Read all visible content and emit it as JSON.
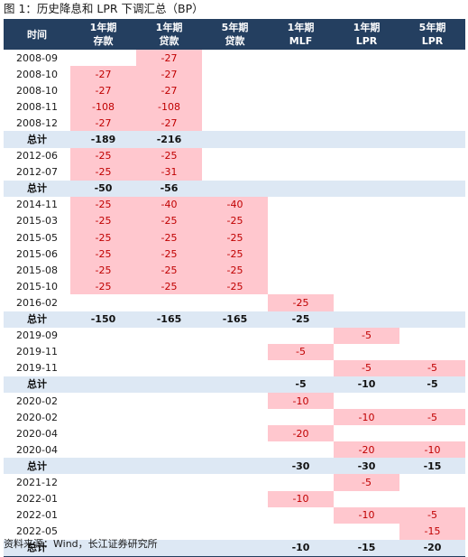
{
  "title": "图 1：历史降息和 LPR 下调汇总（BP）",
  "source": "资料来源：Wind，长江证券研究所",
  "colors": {
    "header_bg": "#243f60",
    "cut_bg": "#ffc7ce",
    "cut_text": "#c00000",
    "total_bg": "#dde8f4"
  },
  "columns": [
    {
      "line1": "时间",
      "line2": ""
    },
    {
      "line1": "1年期",
      "line2": "存款"
    },
    {
      "line1": "1年期",
      "line2": "贷款"
    },
    {
      "line1": "5年期",
      "line2": "贷款"
    },
    {
      "line1": "1年期",
      "line2": "MLF"
    },
    {
      "line1": "1年期",
      "line2": "LPR"
    },
    {
      "line1": "5年期",
      "line2": "LPR"
    }
  ],
  "rows": [
    {
      "type": "data",
      "cells": [
        "2008-09",
        "",
        "-27",
        "",
        "",
        "",
        ""
      ]
    },
    {
      "type": "data",
      "cells": [
        "2008-10",
        "-27",
        "-27",
        "",
        "",
        "",
        ""
      ]
    },
    {
      "type": "data",
      "cells": [
        "2008-10",
        "-27",
        "-27",
        "",
        "",
        "",
        ""
      ]
    },
    {
      "type": "data",
      "cells": [
        "2008-11",
        "-108",
        "-108",
        "",
        "",
        "",
        ""
      ]
    },
    {
      "type": "data",
      "cells": [
        "2008-12",
        "-27",
        "-27",
        "",
        "",
        "",
        ""
      ]
    },
    {
      "type": "total",
      "cells": [
        "总计",
        "-189",
        "-216",
        "",
        "",
        "",
        ""
      ]
    },
    {
      "type": "data",
      "cells": [
        "2012-06",
        "-25",
        "-25",
        "",
        "",
        "",
        ""
      ]
    },
    {
      "type": "data",
      "cells": [
        "2012-07",
        "-25",
        "-31",
        "",
        "",
        "",
        ""
      ]
    },
    {
      "type": "total",
      "cells": [
        "总计",
        "-50",
        "-56",
        "",
        "",
        "",
        ""
      ]
    },
    {
      "type": "data",
      "cells": [
        "2014-11",
        "-25",
        "-40",
        "-40",
        "",
        "",
        ""
      ]
    },
    {
      "type": "data",
      "cells": [
        "2015-03",
        "-25",
        "-25",
        "-25",
        "",
        "",
        ""
      ]
    },
    {
      "type": "data",
      "cells": [
        "2015-05",
        "-25",
        "-25",
        "-25",
        "",
        "",
        ""
      ]
    },
    {
      "type": "data",
      "cells": [
        "2015-06",
        "-25",
        "-25",
        "-25",
        "",
        "",
        ""
      ]
    },
    {
      "type": "data",
      "cells": [
        "2015-08",
        "-25",
        "-25",
        "-25",
        "",
        "",
        ""
      ]
    },
    {
      "type": "data",
      "cells": [
        "2015-10",
        "-25",
        "-25",
        "-25",
        "",
        "",
        ""
      ]
    },
    {
      "type": "data",
      "cells": [
        "2016-02",
        "",
        "",
        "",
        "-25",
        "",
        ""
      ]
    },
    {
      "type": "total",
      "cells": [
        "总计",
        "-150",
        "-165",
        "-165",
        "-25",
        "",
        ""
      ]
    },
    {
      "type": "data",
      "cells": [
        "2019-09",
        "",
        "",
        "",
        "",
        "-5",
        ""
      ]
    },
    {
      "type": "data",
      "cells": [
        "2019-11",
        "",
        "",
        "",
        "-5",
        "",
        ""
      ]
    },
    {
      "type": "data",
      "cells": [
        "2019-11",
        "",
        "",
        "",
        "",
        "-5",
        "-5"
      ]
    },
    {
      "type": "total",
      "cells": [
        "总计",
        "",
        "",
        "",
        "-5",
        "-10",
        "-5"
      ]
    },
    {
      "type": "data",
      "cells": [
        "2020-02",
        "",
        "",
        "",
        "-10",
        "",
        ""
      ]
    },
    {
      "type": "data",
      "cells": [
        "2020-02",
        "",
        "",
        "",
        "",
        "-10",
        "-5"
      ]
    },
    {
      "type": "data",
      "cells": [
        "2020-04",
        "",
        "",
        "",
        "-20",
        "",
        ""
      ]
    },
    {
      "type": "data",
      "cells": [
        "2020-04",
        "",
        "",
        "",
        "",
        "-20",
        "-10"
      ]
    },
    {
      "type": "total",
      "cells": [
        "总计",
        "",
        "",
        "",
        "-30",
        "-30",
        "-15"
      ]
    },
    {
      "type": "data",
      "cells": [
        "2021-12",
        "",
        "",
        "",
        "",
        "-5",
        ""
      ]
    },
    {
      "type": "data",
      "cells": [
        "2022-01",
        "",
        "",
        "",
        "-10",
        "",
        ""
      ]
    },
    {
      "type": "data",
      "cells": [
        "2022-01",
        "",
        "",
        "",
        "",
        "-10",
        "-5"
      ]
    },
    {
      "type": "data",
      "cells": [
        "2022-05",
        "",
        "",
        "",
        "",
        "",
        "-15"
      ]
    },
    {
      "type": "total",
      "cells": [
        "总计",
        "",
        "",
        "",
        "-10",
        "-15",
        "-20"
      ]
    }
  ]
}
